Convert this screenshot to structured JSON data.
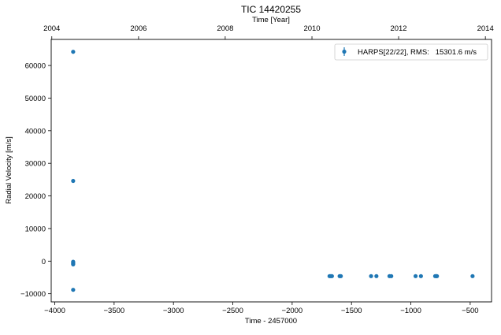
{
  "chart_data": {
    "type": "scatter",
    "title": "TIC 14420255",
    "xlabel": "Time - 2457000",
    "ylabel": "Radial Velocity [m/s]",
    "top_xlabel": "Time [Year]",
    "xlim": [
      -4030,
      -320
    ],
    "ylim": [
      -12500,
      68000
    ],
    "xticks": [
      -4000,
      -3500,
      -3000,
      -2500,
      -2000,
      -1500,
      -1000,
      -500
    ],
    "yticks": [
      -10000,
      0,
      10000,
      20000,
      30000,
      40000,
      50000,
      60000
    ],
    "top_xticks": [
      {
        "label": "2004",
        "x": -4025
      },
      {
        "label": "2006",
        "x": -3294
      },
      {
        "label": "2008",
        "x": -2564
      },
      {
        "label": "2010",
        "x": -1833
      },
      {
        "label": "2012",
        "x": -1103
      },
      {
        "label": "2014",
        "x": -372
      }
    ],
    "grid": false,
    "legend_position": "top-right",
    "marker_color": "#1f77b4",
    "series": [
      {
        "name": "HARPS[22/22], RMS:   15301.6 m/s",
        "points": [
          {
            "x": -3845,
            "y": 64200
          },
          {
            "x": -3845,
            "y": 24600
          },
          {
            "x": -3845,
            "y": -200
          },
          {
            "x": -3845,
            "y": -500
          },
          {
            "x": -3845,
            "y": -800
          },
          {
            "x": -3845,
            "y": -1000
          },
          {
            "x": -3845,
            "y": -8800
          },
          {
            "x": -1685,
            "y": -4600
          },
          {
            "x": -1675,
            "y": -4600
          },
          {
            "x": -1665,
            "y": -4600
          },
          {
            "x": -1600,
            "y": -4600
          },
          {
            "x": -1590,
            "y": -4600
          },
          {
            "x": -1335,
            "y": -4600
          },
          {
            "x": -1290,
            "y": -4600
          },
          {
            "x": -1180,
            "y": -4600
          },
          {
            "x": -1165,
            "y": -4600
          },
          {
            "x": -960,
            "y": -4600
          },
          {
            "x": -915,
            "y": -4600
          },
          {
            "x": -795,
            "y": -4600
          },
          {
            "x": -785,
            "y": -4600
          },
          {
            "x": -780,
            "y": -4600
          },
          {
            "x": -480,
            "y": -4600
          }
        ]
      }
    ]
  }
}
